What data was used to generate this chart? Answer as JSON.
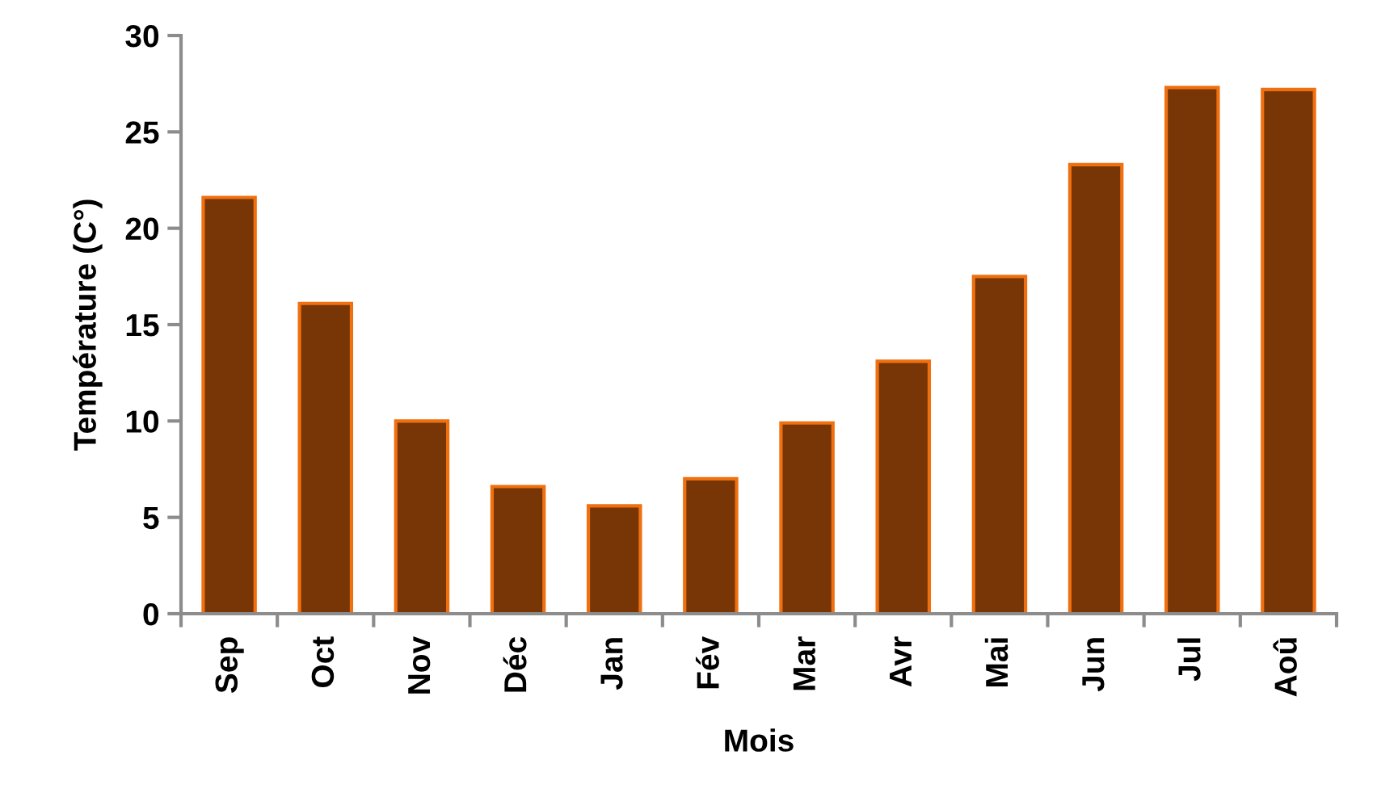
{
  "chart_data": {
    "type": "bar",
    "xlabel": "Mois",
    "ylabel": "Température (C°)",
    "categories": [
      "Sep",
      "Oct",
      "Nov",
      "Déc",
      "Jan",
      "Fév",
      "Mar",
      "Avr",
      "Mai",
      "Jun",
      "Jul",
      "Aoû"
    ],
    "values": [
      21.6,
      16.1,
      10.0,
      6.6,
      5.6,
      7.0,
      9.9,
      13.1,
      17.5,
      23.3,
      27.3,
      27.2
    ],
    "color": "#783606",
    "ylim": [
      0,
      30
    ],
    "yticks": [
      0,
      5,
      10,
      15,
      20,
      25,
      30
    ]
  }
}
